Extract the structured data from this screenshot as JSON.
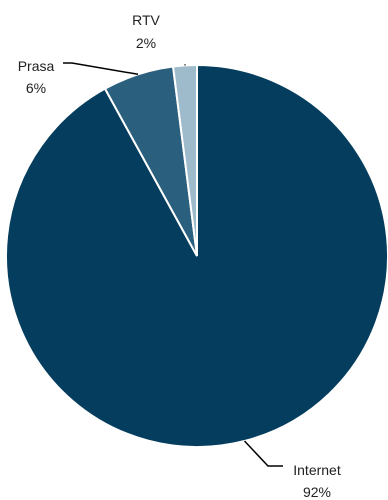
{
  "chart_data": {
    "type": "pie",
    "title": "",
    "slices": [
      {
        "label": "Internet",
        "value": 92,
        "value_label": "92%",
        "color": "#043d5d"
      },
      {
        "label": "Prasa",
        "value": 6,
        "value_label": "6%",
        "color": "#2a5f7d"
      },
      {
        "label": "RTV",
        "value": 2,
        "value_label": "2%",
        "color": "#9ebbcc"
      }
    ],
    "start_angle_deg": 0,
    "direction": "clockwise",
    "legend": "none",
    "data_labels": "outside-with-leader-lines"
  }
}
